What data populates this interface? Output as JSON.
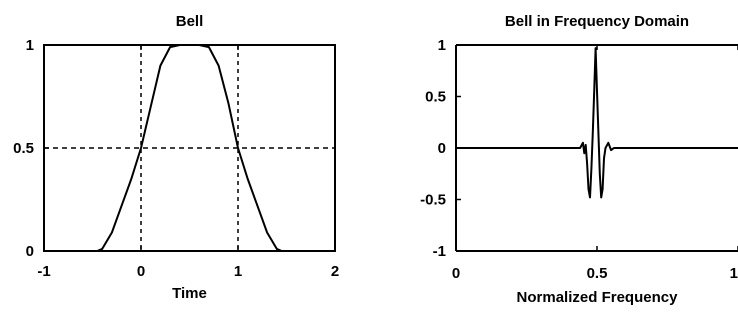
{
  "chart_data": [
    {
      "type": "line",
      "title": "Bell",
      "xlabel": "Time",
      "ylabel": "",
      "xlim": [
        -1,
        2
      ],
      "ylim": [
        0,
        1
      ],
      "xticks": [
        -1,
        0,
        1,
        2
      ],
      "xtick_labels": [
        "-1",
        "0",
        "1",
        "2"
      ],
      "yticks": [
        0,
        0.5,
        1
      ],
      "ytick_labels": [
        "0",
        "0.5",
        "1"
      ],
      "grid": true,
      "series": [
        {
          "x": [
            -1.0,
            -0.45,
            -0.4,
            -0.3,
            -0.2,
            -0.1,
            0.0,
            0.1,
            0.2,
            0.3,
            0.4,
            0.5,
            0.6,
            0.7,
            0.8,
            0.9,
            1.0,
            1.1,
            1.2,
            1.3,
            1.4,
            1.45,
            2.0
          ],
          "y": [
            0.0,
            0.0,
            0.01,
            0.09,
            0.22,
            0.35,
            0.5,
            0.7,
            0.9,
            0.99,
            1.0,
            1.0,
            1.0,
            0.99,
            0.9,
            0.72,
            0.5,
            0.35,
            0.22,
            0.09,
            0.01,
            0.0,
            0.0
          ]
        }
      ]
    },
    {
      "type": "line",
      "title": "Bell in Frequency Domain",
      "xlabel": "Normalized Frequency",
      "ylabel": "",
      "xlim": [
        0,
        1
      ],
      "ylim": [
        -1,
        1
      ],
      "xticks": [
        0,
        0.5,
        1
      ],
      "xtick_labels": [
        "0",
        "0.5",
        "1"
      ],
      "yticks": [
        -1,
        -0.5,
        0,
        0.5,
        1
      ],
      "ytick_labels": [
        "-1",
        "-0.5",
        "0",
        "0.5",
        "1"
      ],
      "grid": false,
      "series": [
        {
          "x": [
            0.0,
            0.44,
            0.45,
            0.455,
            0.46,
            0.465,
            0.47,
            0.475,
            0.48,
            0.485,
            0.49,
            0.495,
            0.5,
            0.505,
            0.51,
            0.515,
            0.52,
            0.525,
            0.53,
            0.54,
            0.55,
            0.56,
            1.0
          ],
          "y": [
            0.0,
            0.0,
            0.05,
            -0.05,
            0.03,
            -0.15,
            -0.4,
            -0.48,
            -0.2,
            0.15,
            0.55,
            0.97,
            0.55,
            0.15,
            -0.25,
            -0.48,
            -0.4,
            -0.1,
            0.0,
            0.05,
            -0.02,
            0.0,
            0.0
          ]
        }
      ]
    }
  ]
}
